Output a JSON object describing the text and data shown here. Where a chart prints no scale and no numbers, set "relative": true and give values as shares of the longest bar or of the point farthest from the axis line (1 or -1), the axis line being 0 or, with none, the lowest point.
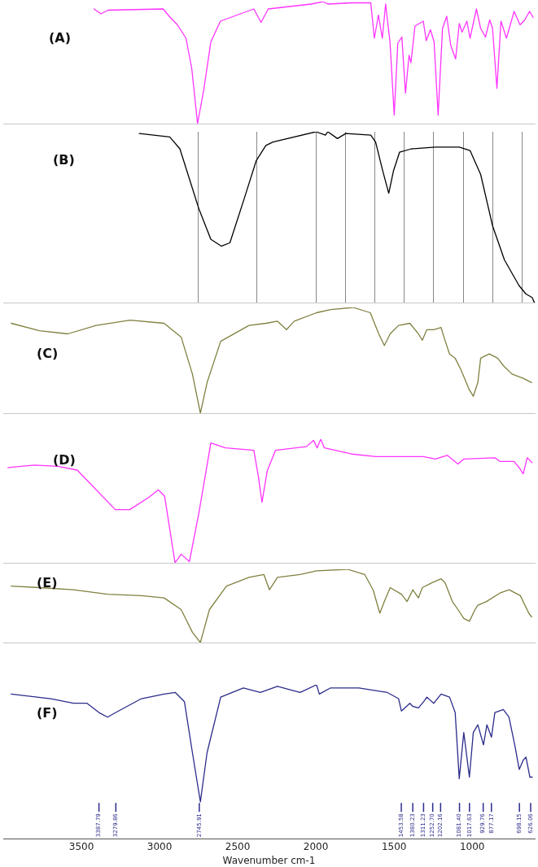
{
  "chart_data": [
    {
      "type": "line",
      "relative": true,
      "marker": "none",
      "tick_labels": false,
      "xlim": [
        4000,
        600
      ],
      "annotations": [
        "(A)"
      ],
      "x": [
        3420,
        3375,
        3329,
        2977,
        2932,
        2886,
        2831,
        2794,
        2757,
        2717,
        2672,
        2611,
        2397,
        2351,
        2305,
        2030,
        1954,
        1924,
        1771,
        1649,
        1626,
        1600,
        1575,
        1554,
        1526,
        1499,
        1476,
        1450,
        1427,
        1404,
        1392,
        1366,
        1313,
        1294,
        1267,
        1244,
        1218,
        1190,
        1163,
        1137,
        1106,
        1083,
        1065,
        1034,
        1014,
        973,
        946,
        915,
        888,
        870,
        842,
        816,
        781,
        732,
        694,
        664,
        633,
        610
      ],
      "series": [
        {
          "color": "#ff33ff",
          "values": [
            0.94,
            0.9,
            0.93,
            0.94,
            0.87,
            0.81,
            0.7,
            0.45,
            0,
            0.28,
            0.67,
            0.84,
            0.94,
            0.83,
            0.94,
            0.98,
            1,
            0.98,
            0.99,
            0.99,
            0.7,
            0.89,
            0.7,
            0.98,
            0.67,
            0.07,
            0.66,
            0.71,
            0.25,
            0.56,
            0.5,
            0.8,
            0.84,
            0.68,
            0.77,
            0.67,
            0.07,
            0.78,
            0.88,
            0.64,
            0.53,
            0.82,
            0.75,
            0.84,
            0.7,
            0.94,
            0.78,
            0.71,
            0.85,
            0.78,
            0.29,
            0.84,
            0.7,
            0.92,
            0.81,
            0.85,
            0.92,
            0.87
          ]
        }
      ]
    },
    {
      "type": "line",
      "relative": true,
      "marker": "none",
      "tick_labels": false,
      "grid": "x",
      "xlim": [
        4000,
        600
      ],
      "annotations": [
        "(B)"
      ],
      "xticks": [
        {
          "value": 2754,
          "label": null
        },
        {
          "value": 2376,
          "label": null
        },
        {
          "value": 2000,
          "label": null
        },
        {
          "value": 1808,
          "label": null
        },
        {
          "value": 1623,
          "label": null
        },
        {
          "value": 1435,
          "label": null
        },
        {
          "value": 1246,
          "label": null
        },
        {
          "value": 1058,
          "label": null
        },
        {
          "value": 870,
          "label": null
        },
        {
          "value": 681,
          "label": null
        }
      ],
      "x": [
        3130,
        2935,
        2870,
        2749,
        2672,
        2604,
        2550,
        2458,
        2382,
        2320,
        2275,
        2000,
        1939,
        1924,
        1862,
        1809,
        1649,
        1618,
        1572,
        1534,
        1504,
        1465,
        1389,
        1236,
        1083,
        1014,
        946,
        870,
        794,
        701,
        656,
        617,
        602
      ],
      "series": [
        {
          "color": "#000000",
          "values": [
            0.99,
            0.97,
            0.9,
            0.55,
            0.37,
            0.33,
            0.35,
            0.61,
            0.83,
            0.92,
            0.94,
            1,
            0.98,
            1,
            0.96,
            0.99,
            0.98,
            0.94,
            0.77,
            0.64,
            0.77,
            0.88,
            0.9,
            0.91,
            0.91,
            0.89,
            0.75,
            0.45,
            0.25,
            0.1,
            0.05,
            0.03,
            0
          ]
        }
      ]
    },
    {
      "type": "line",
      "relative": true,
      "marker": "none",
      "tick_labels": false,
      "xlim": [
        4000,
        600
      ],
      "annotations": [
        "(C)"
      ],
      "x": [
        3949,
        3768,
        3587,
        3406,
        3188,
        2971,
        2862,
        2790,
        2739,
        2696,
        2609,
        2428,
        2319,
        2246,
        2188,
        2138,
        1996,
        1906,
        1761,
        1652,
        1598,
        1562,
        1525,
        1471,
        1399,
        1344,
        1319,
        1290,
        1246,
        1199,
        1181,
        1145,
        1109,
        1072,
        1018,
        993,
        964,
        946,
        891,
        837,
        801,
        746,
        674,
        620
      ],
      "series": [
        {
          "color": "#808040",
          "values": [
            0.85,
            0.78,
            0.75,
            0.83,
            0.88,
            0.85,
            0.72,
            0.37,
            0,
            0.29,
            0.68,
            0.83,
            0.85,
            0.87,
            0.79,
            0.87,
            0.95,
            0.98,
            1,
            0.95,
            0.75,
            0.64,
            0.75,
            0.83,
            0.85,
            0.75,
            0.69,
            0.79,
            0.79,
            0.81,
            0.72,
            0.56,
            0.52,
            0.41,
            0.22,
            0.16,
            0.29,
            0.52,
            0.56,
            0.52,
            0.45,
            0.37,
            0.33,
            0.29
          ]
        }
      ]
    },
    {
      "type": "line",
      "relative": true,
      "marker": "none",
      "tick_labels": false,
      "xlim": [
        4000,
        600
      ],
      "annotations": [
        "(D)"
      ],
      "x": [
        3970,
        3802,
        3649,
        3527,
        3435,
        3283,
        3191,
        3069,
        3008,
        2968,
        2901,
        2862,
        2809,
        2749,
        2672,
        2580,
        2397,
        2367,
        2345,
        2312,
        2259,
        2061,
        2015,
        1992,
        1969,
        1946,
        1771,
        1618,
        1313,
        1236,
        1160,
        1091,
        1053,
        854,
        824,
        732,
        694,
        674,
        648,
        617
      ],
      "series": [
        {
          "color": "#ff33ff",
          "values": [
            0.77,
            0.79,
            0.78,
            0.75,
            0.63,
            0.43,
            0.43,
            0.53,
            0.59,
            0.54,
            0,
            0.07,
            0.01,
            0.4,
            0.97,
            0.93,
            0.91,
            0.69,
            0.49,
            0.74,
            0.91,
            0.94,
            0.99,
            0.93,
            1,
            0.93,
            0.88,
            0.86,
            0.86,
            0.84,
            0.87,
            0.8,
            0.84,
            0.85,
            0.82,
            0.82,
            0.76,
            0.72,
            0.85,
            0.81
          ]
        }
      ]
    },
    {
      "type": "line",
      "relative": true,
      "marker": "none",
      "tick_labels": false,
      "xlim": [
        4000,
        600
      ],
      "annotations": [
        "(E)"
      ],
      "x": [
        3949,
        3768,
        3551,
        3333,
        3116,
        2971,
        2862,
        2790,
        2739,
        2681,
        2572,
        2428,
        2333,
        2297,
        2246,
        2101,
        1996,
        1797,
        1688,
        1634,
        1591,
        1562,
        1525,
        1453,
        1417,
        1380,
        1344,
        1319,
        1254,
        1199,
        1174,
        1127,
        1091,
        1054,
        1018,
        982,
        964,
        909,
        819,
        764,
        692,
        638,
        620
      ],
      "series": [
        {
          "color": "#808040",
          "values": [
            0.77,
            0.75,
            0.72,
            0.66,
            0.64,
            0.61,
            0.45,
            0.14,
            0,
            0.45,
            0.77,
            0.89,
            0.93,
            0.72,
            0.89,
            0.93,
            0.98,
            1,
            0.93,
            0.72,
            0.4,
            0.56,
            0.75,
            0.66,
            0.56,
            0.72,
            0.61,
            0.75,
            0.82,
            0.87,
            0.82,
            0.56,
            0.45,
            0.33,
            0.29,
            0.45,
            0.51,
            0.56,
            0.68,
            0.72,
            0.64,
            0.4,
            0.35
          ]
        }
      ]
    },
    {
      "type": "line",
      "relative": true,
      "marker": "none",
      "tick_labels": "x",
      "xlim": [
        4000,
        600
      ],
      "xticks": [
        3500,
        3000,
        2500,
        2000,
        1500,
        1000
      ],
      "xlabel": "Wavenumber cm-1",
      "annotations": [
        "(F)",
        {
          "text": "3387.79",
          "x": 3387.79
        },
        {
          "text": "3279.86",
          "x": 3279.86
        },
        {
          "text": "2745.91",
          "x": 2745.91
        },
        {
          "text": "1453.58",
          "x": 1453.58
        },
        {
          "text": "1380.23",
          "x": 1380.23
        },
        {
          "text": "1311.23",
          "x": 1311.23
        },
        {
          "text": "1252.70",
          "x": 1252.7
        },
        {
          "text": "1202.16",
          "x": 1202.16
        },
        {
          "text": "1081.40",
          "x": 1081.4
        },
        {
          "text": "1017.63",
          "x": 1017.63
        },
        {
          "text": "929.76",
          "x": 929.76
        },
        {
          "text": "877.17",
          "x": 877.17
        },
        {
          "text": "698.15",
          "x": 698.15
        },
        {
          "text": "626.06",
          "x": 626.06
        }
      ],
      "x": [
        3949,
        3696,
        3551,
        3464,
        3387.79,
        3333,
        3279.86,
        3116,
        2971,
        2899,
        2841,
        2790,
        2739,
        2696,
        2609,
        2464,
        2355,
        2246,
        2101,
        1996,
        1978,
        1906,
        1725,
        1543,
        1471,
        1453,
        1399,
        1380.23,
        1344,
        1311.23,
        1290,
        1246,
        1199,
        1145,
        1109,
        1083,
        1054,
        1018,
        993,
        964,
        928,
        906,
        877,
        855,
        801,
        765,
        728,
        699,
        674,
        656,
        631,
        616
      ],
      "series": [
        {
          "color": "#2b2b8c",
          "values": [
            0.94,
            0.91,
            0.88,
            0.88,
            0.82,
            0.79,
            0.82,
            0.91,
            0.94,
            0.95,
            0.89,
            0.56,
            0.24,
            0.56,
            0.92,
            0.98,
            0.95,
            0.99,
            0.95,
            1,
            0.94,
            0.98,
            0.98,
            0.95,
            0.91,
            0.83,
            0.88,
            0.86,
            0.85,
            0.89,
            0.92,
            0.88,
            0.94,
            0.92,
            0.82,
            0.39,
            0.69,
            0.4,
            0.69,
            0.74,
            0.61,
            0.74,
            0.66,
            0.82,
            0.84,
            0.79,
            0.61,
            0.45,
            0.51,
            0.53,
            0.4,
            0.4
          ]
        }
      ]
    }
  ]
}
